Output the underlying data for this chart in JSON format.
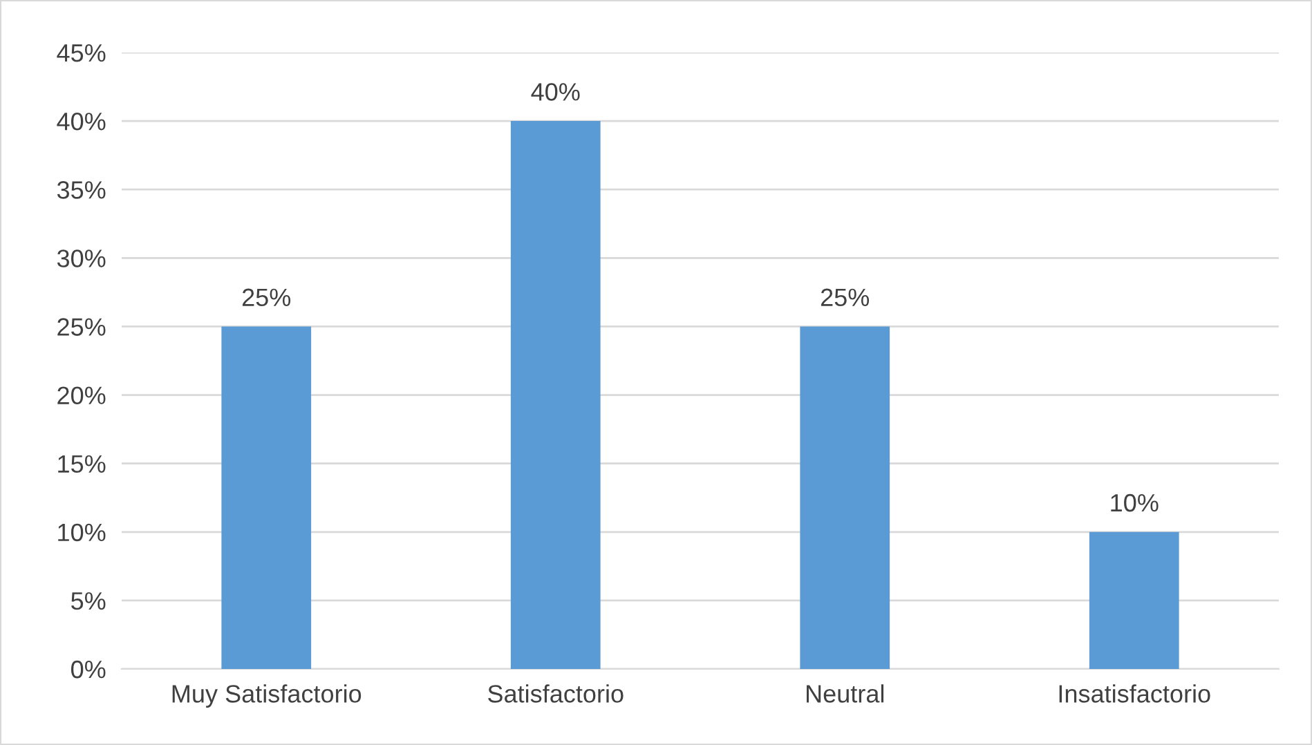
{
  "chart_data": {
    "type": "bar",
    "categories": [
      "Muy Satisfactorio",
      "Satisfactorio",
      "Neutral",
      "Insatisfactorio"
    ],
    "values": [
      25,
      40,
      25,
      10
    ],
    "value_labels": [
      "25%",
      "40%",
      "25%",
      "10%"
    ],
    "color": "#5b9bd5",
    "ylim": [
      0,
      45
    ],
    "yticks": [
      {
        "value": 0,
        "label": "0%"
      },
      {
        "value": 5,
        "label": "5%"
      },
      {
        "value": 10,
        "label": "10%"
      },
      {
        "value": 15,
        "label": "15%"
      },
      {
        "value": 20,
        "label": "20%"
      },
      {
        "value": 25,
        "label": "25%"
      },
      {
        "value": 30,
        "label": "30%"
      },
      {
        "value": 35,
        "label": "35%"
      },
      {
        "value": 40,
        "label": "40%"
      },
      {
        "value": 45,
        "label": "45%"
      }
    ],
    "grid": "y"
  }
}
